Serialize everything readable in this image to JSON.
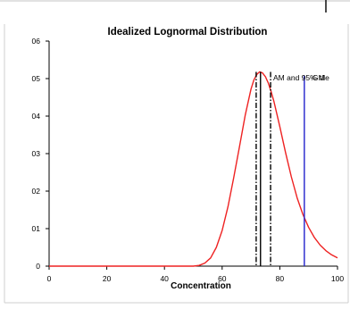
{
  "chart_data": {
    "type": "line",
    "title": "Idealized Lognormal Distribution",
    "xlabel": "Concentration",
    "ylabel": "",
    "xlim": [
      0,
      100
    ],
    "ylim": [
      0,
      0.06
    ],
    "x_ticks": [
      "0",
      "20",
      "40",
      "60",
      "80",
      "100"
    ],
    "y_ticks": [
      "0",
      "01",
      "02",
      "03",
      "04",
      "05",
      "06"
    ],
    "series": [
      {
        "color": "#ee2222",
        "x": [
          0,
          10,
          20,
          30,
          40,
          50,
          52,
          54,
          56,
          58,
          60,
          62,
          64,
          66,
          68,
          70,
          71,
          72,
          73,
          74,
          75,
          76,
          77,
          78,
          80,
          82,
          84,
          86,
          88,
          90,
          92,
          94,
          96,
          98,
          100
        ],
        "y": [
          0,
          0,
          0,
          0,
          0,
          0,
          0.0002,
          0.0008,
          0.0022,
          0.005,
          0.0095,
          0.0158,
          0.0235,
          0.0318,
          0.0402,
          0.0472,
          0.0496,
          0.0511,
          0.0518,
          0.0515,
          0.0505,
          0.0488,
          0.0465,
          0.0438,
          0.0372,
          0.0302,
          0.0238,
          0.0182,
          0.0138,
          0.0103,
          0.0076,
          0.0056,
          0.0041,
          0.003,
          0.0022
        ]
      }
    ],
    "vertical_lines": [
      {
        "x": 71.8,
        "color": "#000000",
        "style": "dashdot"
      },
      {
        "x": 73.3,
        "color": "#000000",
        "style": "solid"
      },
      {
        "x": 76.8,
        "color": "#000000",
        "style": "dashdot"
      },
      {
        "x": 88.5,
        "color": "#2222cc",
        "style": "solid"
      }
    ],
    "annotations": [
      "AM and 95%",
      "GM",
      "tile"
    ]
  }
}
